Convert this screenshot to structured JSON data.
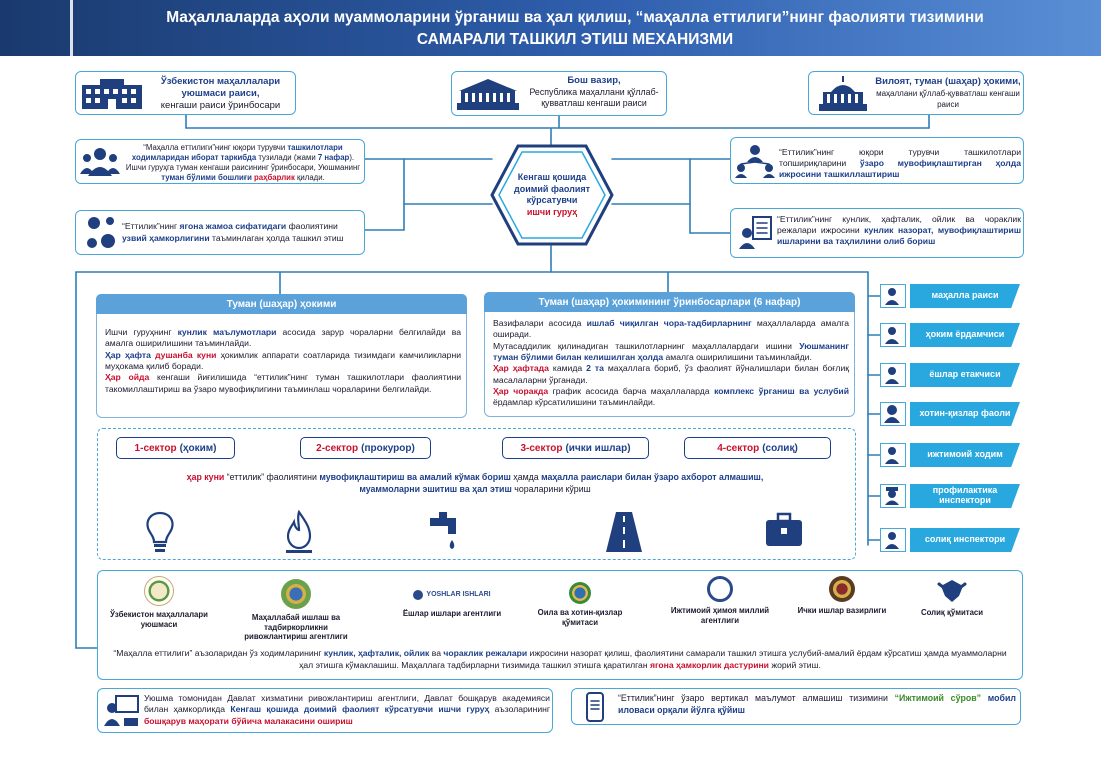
{
  "header": {
    "line1": "Маҳаллаларда аҳоли муаммоларини ўрганиш ва ҳал қилиш, “маҳалла еттилиги”нинг фаолияти тизимини",
    "line2": "САМАРАЛИ ТАШКИЛ ЭТИШ МЕХАНИЗМИ"
  },
  "top": {
    "left": {
      "title": "Ўзбекистон маҳаллалари уюшмаси раиси,",
      "sub": "кенгаши раиси ўринбосари",
      "icon": "building-icon"
    },
    "center": {
      "title": "Бош вазир,",
      "sub": "Республика маҳаллани қўллаб-қувватлаш кенгаши раиси",
      "icon": "government-building-icon"
    },
    "right": {
      "title": "Вилоят, туман (шаҳар) ҳокими,",
      "sub": "маҳаллани қўллаб-қувватлаш кенгаши раиси",
      "icon": "capitol-icon"
    }
  },
  "hub": {
    "l1": "Кенгаш қошида",
    "l2": "доимий фаолият",
    "l3": "кўрсатувчи",
    "l4": "ишчи гуруҳ"
  },
  "mid": {
    "left1": {
      "p1": "“Маҳалла еттилиги”нинг юқори турувчи ",
      "p1b": "ташкилотлари ходимларидан иборат таркибда",
      "p1c": " тузилади (жами ",
      "p1d": "7 нафар",
      "p1e": ").",
      "p2": "Ишчи гуруҳга туман кенгаши раисининг ўринбосари, Уюшманинг ",
      "p2b": "туман бўлими бошлиғи",
      "p2c": " ",
      "p2d": "раҳбарлик",
      "p2e": " қилади."
    },
    "left2": {
      "p1": "“Еттилик”нинг ",
      "p1b": "ягона жамоа сифатидаги",
      "p1c": " фаолиятини ",
      "p1d": "узвий ҳамкорлигини",
      "p1e": " таъминлаган ҳолда ташкил этиш"
    },
    "right1": {
      "p1": "“Еттилик”нинг юқори турувчи ташкилотлари топшириқларини ",
      "p1b": "ўзаро мувофиқлаштирган ҳолда ижросини ташкиллаштириш"
    },
    "right2": {
      "p1": "“Еттилик”нинг кунлик, ҳафталик, ойлик ва чораклик режалари ижросини ",
      "p1b": "кунлик назорат, мувофиқлаштириш ишларини ва таҳлилини олиб бориш"
    }
  },
  "panel_left": {
    "title": "Туман (шаҳар) ҳокими",
    "a1": "Ишчи гуруҳнинг ",
    "a1b": "кунлик маълумотлари",
    "a1c": " асосида зарур чораларни белгилайди ва амалга оширилишини таъминлайди.",
    "a2b": "Ҳар ҳафта",
    "a2r": " душанба куни",
    "a2c": " ҳокимлик аппарати соатларида тизимдаги камчиликларни муҳокама қилиб боради.",
    "a3r": "Ҳар ойда",
    "a3c": " кенгаши йиғилишида “еттилик”нинг туман ташкилотлари фаолиятини такомиллаштириш ва ўзаро мувофиқлигини таъминлаш чораларини белгилайди."
  },
  "panel_right": {
    "title": "Туман (шаҳар) ҳокимининг ўринбосарлари (6 нафар)",
    "b1": "Вазифалари асосида ",
    "b1b": "ишлаб чиқилган чора-тадбирларнинг",
    "b1c": " маҳаллаларда амалга оширади.",
    "b2": "Мутасаддилик қилинадиган ташкилотларнинг маҳаллалардаги ишини ",
    "b2b": "Уюшманинг туман бўлими билан келишилган ҳолда",
    "b2c": " амалга оширилишини таъминлайди.",
    "b3r": "Ҳар ҳафтада",
    "b3c": " камида ",
    "b3d": "2 та",
    "b3e": " маҳаллага бориб, ўз фаолият йўналишлари билан боғлиқ масалаларни ўрганади.",
    "b4r": "Ҳар чоракда",
    "b4c": " график асосида барча маҳаллаларда ",
    "b4d": "комплекс ўрганиш ва услубий",
    "b4e": " ёрдамлар кўрсатилишини таъминлайди."
  },
  "sectors": [
    {
      "num": "1-сектор",
      "name": "(ҳоким)"
    },
    {
      "num": "2-сектор",
      "name": "(прокурор)"
    },
    {
      "num": "3-сектор",
      "name": "(ички ишлар)"
    },
    {
      "num": "4-сектор",
      "name": "(солиқ)"
    }
  ],
  "sector_text": {
    "r1": "ҳар куни",
    "t1": " “еттилик” фаолиятини ",
    "b1": "мувофиқлаштириш ва амалий кўмак бориш",
    "t2": " ҳамда ",
    "b2": "маҳалла раислари билан ўзаро ахборот алмашиш,",
    "b3": "муаммоларни эшитиш ва ҳал этиш",
    "t3": " чораларини кўриш"
  },
  "sector_icons": [
    "lightbulb-icon",
    "gas-flame-icon",
    "water-tap-icon",
    "road-icon",
    "briefcase-icon"
  ],
  "side_list": [
    {
      "label": "маҳалла раиси",
      "icon": "person-icon"
    },
    {
      "label": "ҳоким ёрдамчиси",
      "icon": "person-icon"
    },
    {
      "label": "ёшлар етакчиси",
      "icon": "person-icon"
    },
    {
      "label": "хотин-қизлар фаоли",
      "icon": "woman-icon"
    },
    {
      "label": "ижтимоий ходим",
      "icon": "person-icon"
    },
    {
      "label": "профилактика инспектори",
      "icon": "police-icon"
    },
    {
      "label": "солиқ инспектори",
      "icon": "person-icon"
    }
  ],
  "orgs": [
    {
      "label": "Ўзбекистон маҳаллалари уюшмаси",
      "icon": "mahalla-union-logo"
    },
    {
      "label": "Маҳаллабай ишлаш ва тадбиркорликни ривожлантириш агентлиги",
      "icon": "agency-emblem-logo"
    },
    {
      "label": "Ёшлар ишлари агентлиги",
      "icon": "youth-agency-logo",
      "logo_text": "YOSHLAR ISHLARI"
    },
    {
      "label": "Оила ва хотин-қизлар қўмитаси",
      "icon": "family-committee-logo"
    },
    {
      "label": "Ижтимоий ҳимоя миллий агентлиги",
      "icon": "social-protection-logo"
    },
    {
      "label": "Ички ишлар вазирлиги",
      "icon": "interior-ministry-logo"
    },
    {
      "label": "Солиқ қўмитаси",
      "icon": "tax-committee-logo"
    }
  ],
  "orgs_text": {
    "t1": "“Маҳалла еттилиги” аъзоларидан ўз ходимларининг ",
    "b1": "кунлик, ҳафталик, ойлик",
    "t2": " ва ",
    "b2": "чораклик режалари",
    "t3": " ижросини назорат қилиш, фаолиятини самарали ташкил этишга услубий-амалий ёрдам кўрсатиш ҳамда муаммоларни ҳал этишга кўмаклашиш. Маҳаллага тадбирларни тизимида ташкил этишга қаратилган ",
    "r1": "ягона ҳамкорлик дастурини",
    "t4": " жорий этиш."
  },
  "bottom_left": {
    "t1": "Уюшма томонидан Давлат хизматини ривожлантириш агентлиги, Давлат бошқарув академияси билан ҳамкорликда ",
    "b1": "Кенгаш қошида доимий фаолият кўрсатувчи ишчи гуруҳ",
    "t2": " аъзоларининг ",
    "r1": "бошқарув маҳорати бўйича малакасини ошириш"
  },
  "bottom_right": {
    "t1": "“Еттилик”нинг ўзаро вертикал маълумот алмашиш тизимини ",
    "g1": "“Ижтимоий сўров”",
    "b1": " мобил иловаси орқали йўлга қўйиш"
  },
  "colors": {
    "navy": "#1d3f8a",
    "accent": "#29a8df",
    "red": "#c8102e",
    "border": "#4aa8d8"
  }
}
